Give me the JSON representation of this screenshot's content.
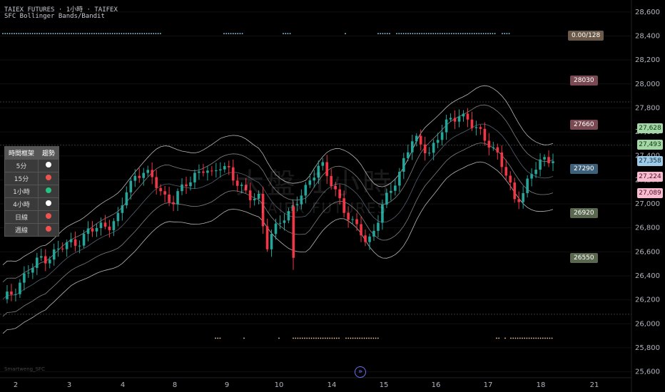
{
  "header": {
    "title": "TAIEX FUTURES · 1小時 · TAIFEX",
    "indicator": "SFC Bollinger Bands/Bandit"
  },
  "watermark": {
    "line1": "大盤 1小時",
    "line2": "TAIEX FUTURES"
  },
  "author": "Smartweng_SFC",
  "colors": {
    "up": "#26a69a",
    "down": "#ef5350",
    "candle_up": "#26a69a",
    "candle_down": "#f23645",
    "band": "#d8d8d8",
    "dots_top": "#9fd8f0",
    "dots_bottom": "#f5c8a0"
  },
  "axis": {
    "y_labels": [
      "28,600",
      "28,400",
      "28,200",
      "28,000",
      "27,800",
      "27,600",
      "27,400",
      "27,200",
      "27,000",
      "26,800",
      "26,600",
      "26,400",
      "26,200",
      "26,000",
      "25,800",
      "25,600"
    ],
    "x_labels": [
      "2",
      "3",
      "4",
      "8",
      "9",
      "10",
      "14",
      "15",
      "16",
      "17",
      "18",
      "21"
    ]
  },
  "level_tags": [
    {
      "label": "0.00/128",
      "value": 28405,
      "color": "#6b5a4a"
    },
    {
      "label": "28030",
      "value": 28030,
      "color": "#7a4a52"
    },
    {
      "label": "27660",
      "value": 27660,
      "color": "#7a4a52"
    },
    {
      "label": "27290",
      "value": 27290,
      "color": "#3f6079"
    },
    {
      "label": "26920",
      "value": 26920,
      "color": "#5a6850"
    },
    {
      "label": "26550",
      "value": 26550,
      "color": "#5a6850"
    }
  ],
  "price_tags": [
    {
      "label": "27,628",
      "value": 27628,
      "bg": "#a5d6a7",
      "fg": "#0a3a10"
    },
    {
      "label": "27,493",
      "value": 27493,
      "bg": "#a5d6a7",
      "fg": "#0a3a10"
    },
    {
      "label": "27,358",
      "value": 27358,
      "bg": "#9ecbe8",
      "fg": "#0a2a3a"
    },
    {
      "label": "27,224",
      "value": 27224,
      "bg": "#f8bbd0",
      "fg": "#4a1025"
    },
    {
      "label": "27,089",
      "value": 27089,
      "bg": "#f8bbd0",
      "fg": "#4a1025"
    }
  ],
  "trend_table": {
    "headers": [
      "時間框架",
      "趨勢"
    ],
    "rows": [
      {
        "tf": "5分",
        "color": "#ffffff"
      },
      {
        "tf": "15分",
        "color": "#ef5350"
      },
      {
        "tf": "1小時",
        "color": "#26c281"
      },
      {
        "tf": "4小時",
        "color": "#ffffff"
      },
      {
        "tf": "日線",
        "color": "#ef5350"
      },
      {
        "tf": "週線",
        "color": "#ef5350"
      }
    ]
  },
  "chart_data": {
    "type": "candlestick",
    "ylim": [
      25550,
      28700
    ],
    "x_ticks": [
      "2",
      "3",
      "4",
      "8",
      "9",
      "10",
      "14",
      "15",
      "16",
      "17",
      "18",
      "21"
    ],
    "close_path": [
      26180,
      26250,
      26330,
      26420,
      26470,
      26560,
      26560,
      26610,
      26640,
      26690,
      26700,
      26760,
      26790,
      26830,
      26840,
      26880,
      27120,
      27230,
      27290,
      27210,
      27140,
      27060,
      27030,
      27100,
      27190,
      27270,
      27300,
      27210,
      27330,
      27320,
      27180,
      27090,
      27070,
      27080,
      26620,
      26760,
      26900,
      26940,
      27010,
      27100,
      27260,
      27360,
      27200,
      27080,
      26980,
      26850,
      26780,
      26640,
      26830,
      26980,
      27100,
      27200,
      27460,
      27540,
      27470,
      27420,
      27560,
      27650,
      27680,
      27760,
      27720,
      27620,
      27540,
      27500,
      27410,
      27220,
      27020,
      27090,
      27240,
      27310,
      27360,
      27400
    ],
    "band_width": [
      260,
      260,
      250,
      250,
      250,
      250,
      240,
      240,
      240,
      230,
      230,
      240,
      250,
      260,
      270,
      280,
      290,
      300,
      300,
      300,
      300,
      290,
      280,
      270,
      270,
      270,
      280,
      290,
      290,
      280,
      280,
      280,
      270,
      260,
      250,
      240,
      240,
      250,
      260,
      270,
      280,
      280,
      280,
      270,
      260,
      260,
      260,
      260,
      260,
      270,
      280,
      290,
      300,
      300,
      300,
      290,
      280,
      270,
      270,
      270,
      270,
      280,
      290,
      300,
      300,
      300,
      290,
      280,
      270,
      260,
      250,
      250
    ]
  }
}
